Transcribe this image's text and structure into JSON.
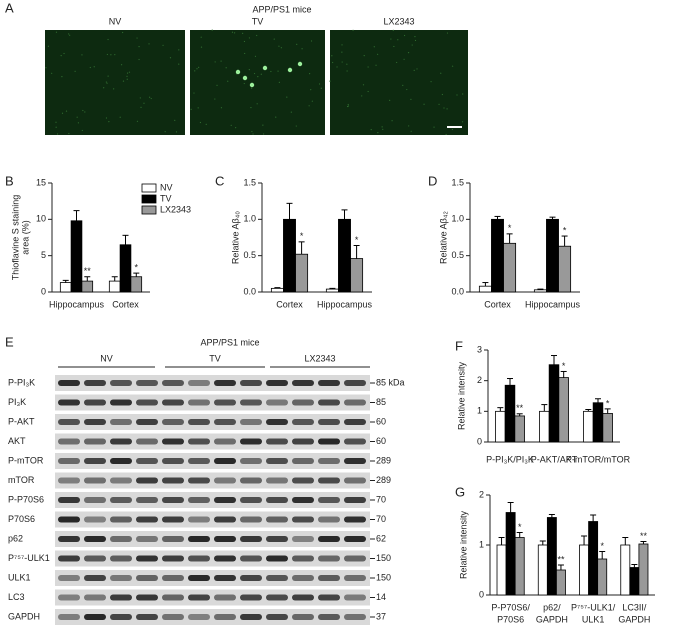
{
  "figure": {
    "panel_a": {
      "letter": "A",
      "title": "APP/PS1 mice",
      "groups": [
        "NV",
        "TV",
        "LX2343"
      ]
    },
    "panel_e": {
      "letter": "E",
      "title": "APP/PS1 mice",
      "groups": [
        "NV",
        "TV",
        "LX2343"
      ],
      "rows": [
        {
          "name": "P-PI₃K",
          "size": "85 kDa"
        },
        {
          "name": "PI₃K",
          "size": "85"
        },
        {
          "name": "P-AKT",
          "size": "60"
        },
        {
          "name": "AKT",
          "size": "60"
        },
        {
          "name": "P-mTOR",
          "size": "289"
        },
        {
          "name": "mTOR",
          "size": "289"
        },
        {
          "name": "P-P70S6",
          "size": "70"
        },
        {
          "name": "P70S6",
          "size": "70"
        },
        {
          "name": "p62",
          "size": "62"
        },
        {
          "name": "P⁷⁵⁷-ULK1",
          "size": "150"
        },
        {
          "name": "ULK1",
          "size": "150"
        },
        {
          "name": "LC3",
          "size": "14"
        },
        {
          "name": "GAPDH",
          "size": "37"
        }
      ]
    }
  },
  "chart_data": [
    {
      "type": "bar",
      "panel": "B",
      "ylabel": [
        "Thioflavine S staining",
        "area (%)"
      ],
      "ylim": [
        0,
        15
      ],
      "yticks": [
        0,
        5,
        10,
        15
      ],
      "categories": [
        [
          "Hippocampus"
        ],
        [
          "Cortex"
        ]
      ],
      "legend": "upper right",
      "series": [
        {
          "name": "NV",
          "color": "#ffffff",
          "values": [
            1.3,
            1.5
          ],
          "errors": [
            0.3,
            0.6
          ],
          "significance": [
            null,
            null
          ]
        },
        {
          "name": "TV",
          "color": "#000000",
          "values": [
            9.8,
            6.5
          ],
          "errors": [
            1.4,
            1.3
          ],
          "significance": [
            null,
            null
          ]
        },
        {
          "name": "LX2343",
          "color": "#999999",
          "values": [
            1.5,
            2.1
          ],
          "errors": [
            0.6,
            0.5
          ],
          "significance": [
            "**",
            "*"
          ]
        }
      ]
    },
    {
      "type": "bar",
      "panel": "C",
      "ylabel": [
        "Relative Aβ₄₀"
      ],
      "ylim": [
        0,
        1.5
      ],
      "yticks": [
        {
          "value": 0,
          "label": "0.0"
        },
        {
          "value": 0.5,
          "label": "0.5"
        },
        {
          "value": 1,
          "label": "1.0"
        },
        {
          "value": 1.5,
          "label": "1.5"
        }
      ],
      "categories": [
        [
          "Cortex"
        ],
        [
          "Hippocampus"
        ]
      ],
      "series": [
        {
          "color": "#ffffff",
          "values": [
            0.05,
            0.04
          ],
          "errors": [
            0.01,
            0.01
          ],
          "significance": [
            null,
            null
          ]
        },
        {
          "color": "#000000",
          "values": [
            1.0,
            1.0
          ],
          "errors": [
            0.22,
            0.13
          ],
          "significance": [
            null,
            null
          ]
        },
        {
          "color": "#999999",
          "values": [
            0.52,
            0.46
          ],
          "errors": [
            0.17,
            0.18
          ],
          "significance": [
            "*",
            "*"
          ]
        }
      ]
    },
    {
      "type": "bar",
      "panel": "D",
      "ylabel": [
        "Relative Aβ₄₂"
      ],
      "ylim": [
        0,
        1.5
      ],
      "yticks": [
        {
          "value": 0,
          "label": "0.0"
        },
        {
          "value": 0.5,
          "label": "0.5"
        },
        {
          "value": 1,
          "label": "1.0"
        },
        {
          "value": 1.5,
          "label": "1.5"
        }
      ],
      "categories": [
        [
          "Cortex"
        ],
        [
          "Hippocampus"
        ]
      ],
      "series": [
        {
          "color": "#ffffff",
          "values": [
            0.08,
            0.03
          ],
          "errors": [
            0.05,
            0.01
          ],
          "significance": [
            null,
            null
          ]
        },
        {
          "color": "#000000",
          "values": [
            1.0,
            1.0
          ],
          "errors": [
            0.04,
            0.03
          ],
          "significance": [
            null,
            null
          ]
        },
        {
          "color": "#999999",
          "values": [
            0.67,
            0.63
          ],
          "errors": [
            0.13,
            0.14
          ],
          "significance": [
            "*",
            "*"
          ]
        }
      ]
    },
    {
      "type": "bar",
      "panel": "F",
      "ylabel": [
        "Relative intensity"
      ],
      "ylim": [
        0,
        3
      ],
      "yticks": [
        0,
        1,
        2,
        3
      ],
      "categories": [
        [
          "P-PI₃K/PI₃K"
        ],
        [
          "P-AKT/AKT"
        ],
        [
          "P-mTOR/mTOR"
        ]
      ],
      "series": [
        {
          "color": "#ffffff",
          "values": [
            1.0,
            1.0,
            1.0
          ],
          "errors": [
            0.12,
            0.22,
            0.06
          ],
          "significance": [
            null,
            null,
            null
          ]
        },
        {
          "color": "#000000",
          "values": [
            1.85,
            2.52,
            1.28
          ],
          "errors": [
            0.22,
            0.3,
            0.13
          ],
          "significance": [
            null,
            null,
            null
          ]
        },
        {
          "color": "#999999",
          "values": [
            0.85,
            2.1,
            0.93
          ],
          "errors": [
            0.07,
            0.2,
            0.15
          ],
          "significance": [
            "**",
            "*",
            "*"
          ]
        }
      ]
    },
    {
      "type": "bar",
      "panel": "G",
      "ylabel": [
        "Relative intensity"
      ],
      "ylim": [
        0,
        2
      ],
      "yticks": [
        0,
        1,
        2
      ],
      "categories": [
        [
          "P-P70S6/",
          "P70S6"
        ],
        [
          "p62/",
          "GAPDH"
        ],
        [
          "P⁷⁵⁷-ULK1/",
          "ULK1"
        ],
        [
          "LC3II/",
          "GAPDH"
        ]
      ],
      "series": [
        {
          "color": "#ffffff",
          "values": [
            1.0,
            1.0,
            1.0,
            1.0
          ],
          "errors": [
            0.15,
            0.08,
            0.18,
            0.15
          ],
          "significance": [
            null,
            null,
            null,
            null
          ]
        },
        {
          "color": "#000000",
          "values": [
            1.65,
            1.55,
            1.47,
            0.55
          ],
          "errors": [
            0.2,
            0.06,
            0.13,
            0.06
          ],
          "significance": [
            null,
            null,
            null,
            null
          ]
        },
        {
          "color": "#999999",
          "values": [
            1.15,
            0.5,
            0.72,
            1.02
          ],
          "errors": [
            0.1,
            0.1,
            0.15,
            0.05
          ],
          "significance": [
            "*",
            "**",
            "*",
            "**"
          ]
        }
      ]
    }
  ]
}
